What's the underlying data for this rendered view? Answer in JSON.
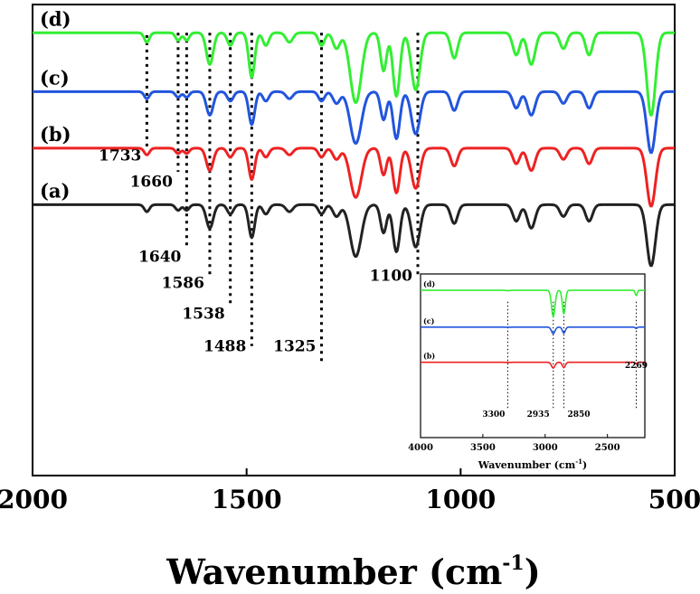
{
  "chart_data": [
    {
      "type": "line",
      "title": "",
      "xlabel": "Wavenumber (cm",
      "xlabel_sup": "-1",
      "xlabel_close": ")",
      "xlim": [
        2000,
        500
      ],
      "x_ticks": [
        "2000",
        "1500",
        "1000",
        "500"
      ],
      "ylabel": "",
      "grid": false,
      "series": [
        {
          "name": "(d)",
          "color": "#33ee33",
          "baseline": 0.06
        },
        {
          "name": "(c)",
          "color": "#2255dd",
          "baseline": 0.185
        },
        {
          "name": "(b)",
          "color": "#ee2222",
          "baseline": 0.305
        },
        {
          "name": "(a)",
          "color": "#222222",
          "baseline": 0.425
        }
      ],
      "peaks": [
        {
          "x": 1733,
          "w": 6,
          "d": 0.015
        },
        {
          "x": 1660,
          "w": 6,
          "d": 0.012
        },
        {
          "x": 1640,
          "w": 6,
          "d": 0.012
        },
        {
          "x": 1586,
          "w": 8,
          "d": 0.05
        },
        {
          "x": 1538,
          "w": 7,
          "d": 0.02
        },
        {
          "x": 1488,
          "w": 7,
          "d": 0.07
        },
        {
          "x": 1455,
          "w": 7,
          "d": 0.02
        },
        {
          "x": 1400,
          "w": 8,
          "d": 0.015
        },
        {
          "x": 1325,
          "w": 7,
          "d": 0.02
        },
        {
          "x": 1290,
          "w": 8,
          "d": 0.025
        },
        {
          "x": 1245,
          "w": 13,
          "d": 0.11
        },
        {
          "x": 1180,
          "w": 7,
          "d": 0.06
        },
        {
          "x": 1150,
          "w": 8,
          "d": 0.1
        },
        {
          "x": 1105,
          "w": 10,
          "d": 0.09
        },
        {
          "x": 1015,
          "w": 8,
          "d": 0.04
        },
        {
          "x": 870,
          "w": 8,
          "d": 0.035
        },
        {
          "x": 835,
          "w": 9,
          "d": 0.05
        },
        {
          "x": 760,
          "w": 8,
          "d": 0.025
        },
        {
          "x": 700,
          "w": 8,
          "d": 0.035
        },
        {
          "x": 555,
          "w": 10,
          "d": 0.13
        }
      ],
      "series_scale": [
        1.35,
        1.0,
        0.95,
        1.0
      ],
      "annotations": [
        {
          "text": "1733",
          "x": 1733,
          "line_top": 0.065,
          "line_bottom": 0.31,
          "label_y": 0.32,
          "label_side": "left"
        },
        {
          "text": "1660",
          "x": 1660,
          "line_top": 0.06,
          "line_bottom": 0.355,
          "label_y": 0.375,
          "label_side": "left"
        },
        {
          "text": "1640",
          "x": 1640,
          "line_top": 0.06,
          "line_bottom": 0.52,
          "label_y": 0.535,
          "label_side": "left"
        },
        {
          "text": "1586",
          "x": 1586,
          "line_top": 0.06,
          "line_bottom": 0.575,
          "label_y": 0.59,
          "label_side": "left"
        },
        {
          "text": "1538",
          "x": 1538,
          "line_top": 0.06,
          "line_bottom": 0.64,
          "label_y": 0.655,
          "label_side": "left"
        },
        {
          "text": "1488",
          "x": 1488,
          "line_top": 0.06,
          "line_bottom": 0.725,
          "label_y": 0.725,
          "label_side": "left"
        },
        {
          "text": "1325",
          "x": 1325,
          "line_top": 0.06,
          "line_bottom": 0.76,
          "label_y": 0.725,
          "label_side": "left"
        },
        {
          "text": "1100",
          "x": 1100,
          "line_top": 0.06,
          "line_bottom": 0.575,
          "label_y": 0.575,
          "label_side": "left"
        }
      ]
    },
    {
      "type": "line",
      "title": "",
      "xlabel": "Wavenumber (cm",
      "xlabel_sup": "-1",
      "xlabel_close": ")",
      "xlim": [
        4000,
        2200
      ],
      "x_ticks": [
        "4000",
        "3500",
        "3000",
        "2500"
      ],
      "x_tick_values": [
        4000,
        3500,
        3000,
        2500
      ],
      "grid": false,
      "series": [
        {
          "name": "(d)",
          "color": "#33ee33",
          "baseline": 0.1
        },
        {
          "name": "(c)",
          "color": "#2255dd",
          "baseline": 0.325
        },
        {
          "name": "(b)",
          "color": "#ee2222",
          "baseline": 0.54
        }
      ],
      "peaks": [
        {
          "x": 3300,
          "w": 20,
          "d": 0.01
        },
        {
          "x": 2935,
          "w": 14,
          "d": 1.0
        },
        {
          "x": 2850,
          "w": 12,
          "d": 0.9
        },
        {
          "x": 2269,
          "w": 8,
          "d": 0.2
        }
      ],
      "series_scale": [
        0.16,
        0.04,
        0.035
      ],
      "annotations": [
        {
          "text": "3300",
          "x": 3300
        },
        {
          "text": "2935",
          "x": 2935
        },
        {
          "text": "2850",
          "x": 2850
        },
        {
          "text": "2269",
          "x": 2269
        }
      ]
    }
  ]
}
